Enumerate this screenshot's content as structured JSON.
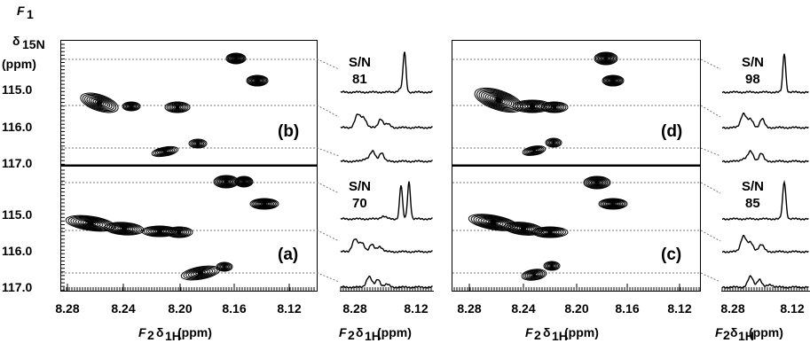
{
  "figure": {
    "f1_axis": {
      "symbol": "F",
      "symbol_sub": "1",
      "nucleus_symbol": "δ",
      "nucleus_sub": "15N",
      "unit": "(ppm)",
      "ticks": [
        "115.0",
        "116.0",
        "117.0"
      ]
    },
    "f2_axis": {
      "symbol": "F",
      "symbol_sub": "2",
      "nucleus_symbol": "δ",
      "nucleus_sub": "1H",
      "unit": "(ppm)",
      "spectrum_ticks": [
        "8.28",
        "8.24",
        "8.20",
        "8.16",
        "8.12"
      ],
      "slice_ticks": [
        "8.28",
        "8.12"
      ]
    },
    "panels": [
      {
        "label": "(b)",
        "sn_title": "S/N",
        "sn_value": "81"
      },
      {
        "label": "(a)",
        "sn_title": "S/N",
        "sn_value": "70"
      },
      {
        "label": "(d)",
        "sn_title": "S/N",
        "sn_value": "98"
      },
      {
        "label": "(c)",
        "sn_title": "S/N",
        "sn_value": "85"
      }
    ]
  }
}
